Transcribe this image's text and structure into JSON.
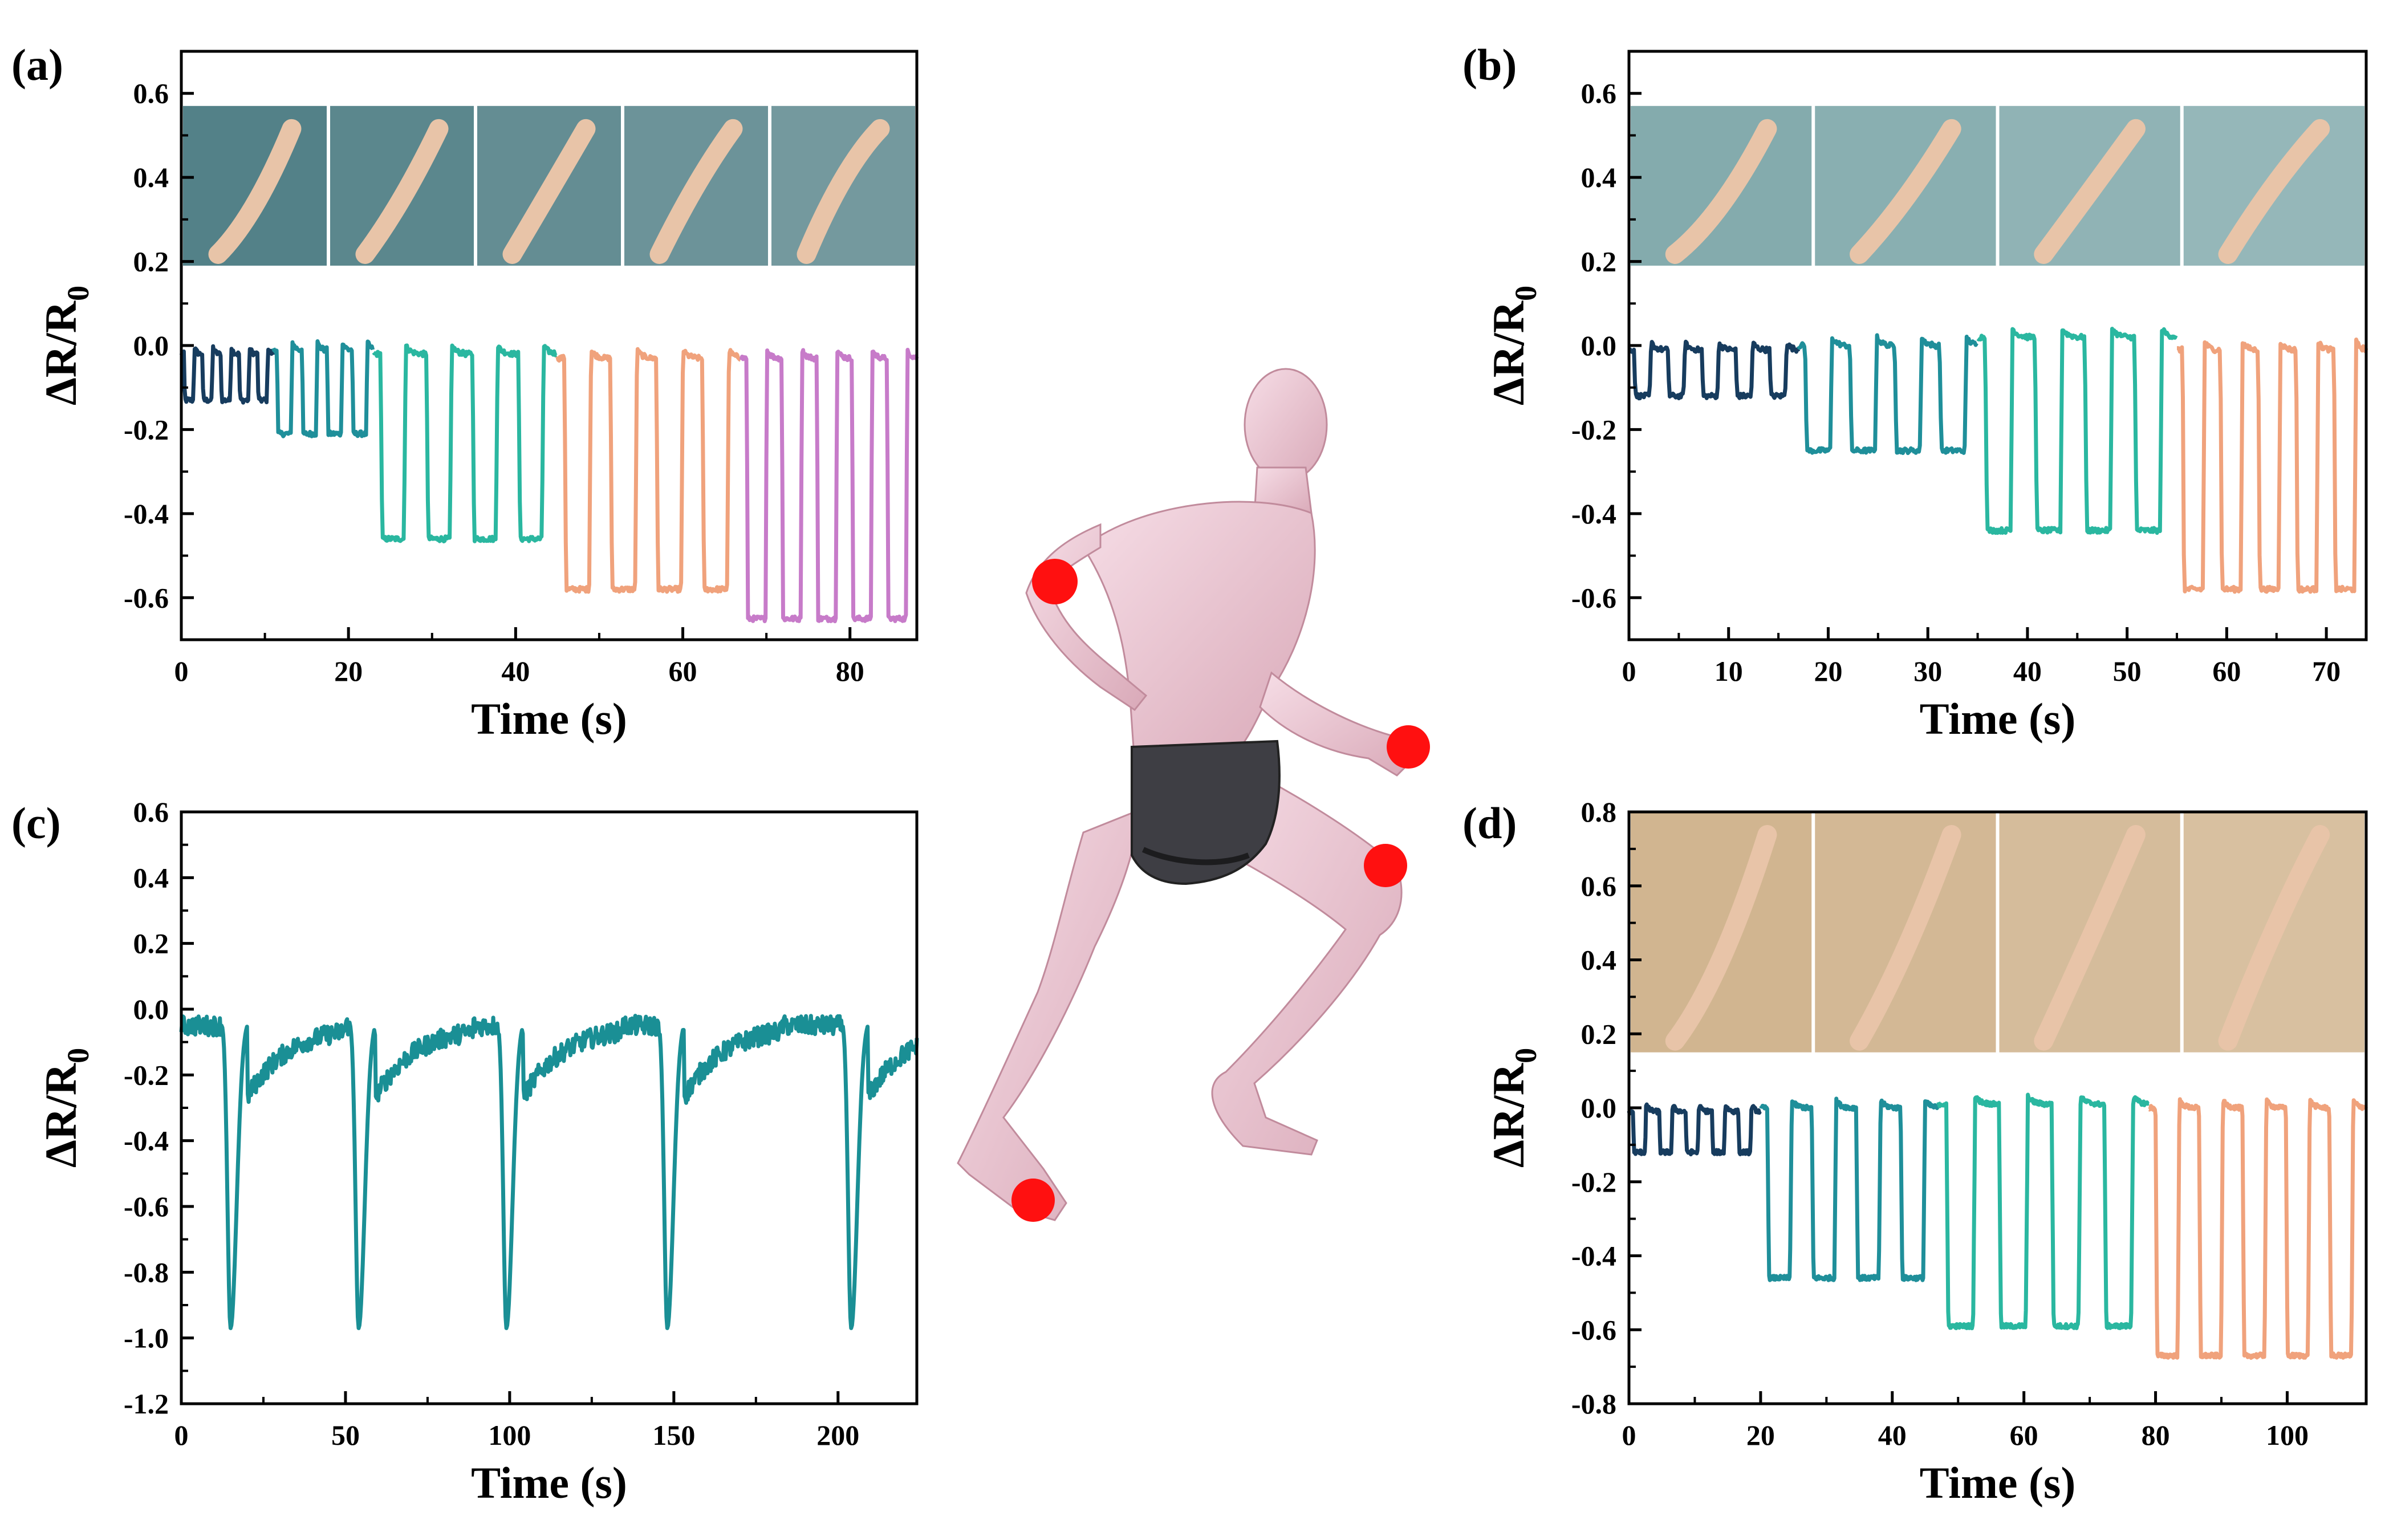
{
  "figure": {
    "center_illustration": {
      "description_icon": "running-man-icon",
      "marker_color": "#ff1010",
      "marker_names": [
        "elbow-marker",
        "wrist-marker",
        "knee-marker",
        "ankle-marker"
      ]
    }
  },
  "chart_data": [
    {
      "id": "a",
      "type": "line",
      "label": "(a)",
      "xlabel": "Time (s)",
      "ylabel_main": "ΔR/R",
      "ylabel_sub": "0",
      "xlim": [
        0,
        88
      ],
      "ylim": [
        -0.7,
        0.7
      ],
      "xticks": [
        0,
        20,
        40,
        60,
        80
      ],
      "yticks": [
        0.6,
        0.4,
        0.2,
        0.0,
        -0.2,
        -0.4,
        -0.6
      ],
      "ytick_labels": [
        "0.6",
        "0.4",
        "0.2",
        "0.0",
        "-0.2",
        "-0.4",
        "-0.6"
      ],
      "photo_icon": "arm-bending-photo-strip-icon",
      "photo_count": 5,
      "photo_yrange": [
        0.19,
        0.57
      ],
      "photo_color": "#356b73",
      "series": [
        {
          "name": "stage-1",
          "color": "#173c5e",
          "start": 0,
          "end": 11,
          "count": 5,
          "depth": -0.13,
          "duty": 0.55,
          "baseline": -0.02
        },
        {
          "name": "stage-2",
          "color": "#1f8f9a",
          "start": 11,
          "end": 23,
          "count": 4,
          "depth": -0.21,
          "duty": 0.6,
          "baseline": -0.01
        },
        {
          "name": "stage-3",
          "color": "#2ab7a0",
          "start": 23,
          "end": 45,
          "count": 4,
          "depth": -0.46,
          "duty": 0.55,
          "baseline": -0.02
        },
        {
          "name": "stage-4",
          "color": "#f0a27c",
          "start": 45,
          "end": 67,
          "count": 4,
          "depth": -0.58,
          "duty": 0.58,
          "baseline": -0.03
        },
        {
          "name": "stage-5",
          "color": "#c77bc9",
          "start": 67,
          "end": 88,
          "count": 5,
          "depth": -0.65,
          "duty": 0.58,
          "baseline": -0.03
        }
      ]
    },
    {
      "id": "b",
      "type": "line",
      "label": "(b)",
      "xlabel": "Time (s)",
      "ylabel_main": "ΔR/R",
      "ylabel_sub": "0",
      "xlim": [
        0,
        74
      ],
      "ylim": [
        -0.7,
        0.7
      ],
      "xticks": [
        0,
        10,
        20,
        30,
        40,
        50,
        60,
        70
      ],
      "yticks": [
        0.6,
        0.4,
        0.2,
        0.0,
        -0.2,
        -0.4,
        -0.6
      ],
      "ytick_labels": [
        "0.6",
        "0.4",
        "0.2",
        "0.0",
        "-0.2",
        "-0.4",
        "-0.6"
      ],
      "photo_icon": "finger-bending-photo-strip-icon",
      "photo_count": 4,
      "photo_yrange": [
        0.19,
        0.57
      ],
      "photo_color": "#6e9c9f",
      "series": [
        {
          "name": "stage-1",
          "color": "#173c5e",
          "start": 0,
          "end": 17,
          "count": 5,
          "depth": -0.12,
          "duty": 0.5,
          "baseline": -0.01
        },
        {
          "name": "stage-2",
          "color": "#1f8f9a",
          "start": 17,
          "end": 35,
          "count": 4,
          "depth": -0.25,
          "duty": 0.6,
          "baseline": 0.0
        },
        {
          "name": "stage-3",
          "color": "#2ab7a0",
          "start": 35,
          "end": 55,
          "count": 4,
          "depth": -0.44,
          "duty": 0.55,
          "baseline": 0.02
        },
        {
          "name": "stage-4",
          "color": "#f0a27c",
          "start": 55,
          "end": 74,
          "count": 5,
          "depth": -0.58,
          "duty": 0.58,
          "baseline": -0.01
        }
      ]
    },
    {
      "id": "c",
      "type": "line",
      "label": "(c)",
      "xlabel": "Time (s)",
      "ylabel_main": "ΔR/R",
      "ylabel_sub": "0",
      "xlim": [
        0,
        224
      ],
      "ylim": [
        -1.2,
        0.6
      ],
      "xticks": [
        0,
        50,
        100,
        150,
        200
      ],
      "yticks": [
        0.6,
        0.4,
        0.2,
        0.0,
        -0.2,
        -0.4,
        -0.6,
        -0.8,
        -1.0,
        -1.2
      ],
      "ytick_labels": [
        "0.6",
        "0.4",
        "0.2",
        "0.0",
        "-0.2",
        "-0.4",
        "-0.6",
        "-0.8",
        "-1.0",
        "-1.2"
      ],
      "series": [
        {
          "name": "ankle-signal",
          "color": "#1a8f95",
          "dips": [
            15,
            54,
            99,
            148,
            204
          ],
          "depth": -0.97
        }
      ]
    },
    {
      "id": "d",
      "type": "line",
      "label": "(d)",
      "xlabel": "Time (s)",
      "ylabel_main": "ΔR/R",
      "ylabel_sub": "0",
      "xlim": [
        0,
        112
      ],
      "ylim": [
        -0.8,
        0.8
      ],
      "xticks": [
        0,
        20,
        40,
        60,
        80,
        100
      ],
      "yticks": [
        0.8,
        0.6,
        0.4,
        0.2,
        0.0,
        -0.2,
        -0.4,
        -0.6,
        -0.8
      ],
      "ytick_labels": [
        "0.8",
        "0.6",
        "0.4",
        "0.2",
        "0.0",
        "-0.2",
        "-0.4",
        "-0.6",
        "-0.8"
      ],
      "photo_icon": "knee-bending-photo-strip-icon",
      "photo_count": 4,
      "photo_yrange": [
        0.15,
        0.8
      ],
      "photo_color": "#c9a87d",
      "series": [
        {
          "name": "stage-1",
          "color": "#173c5e",
          "start": 0,
          "end": 20,
          "count": 5,
          "depth": -0.12,
          "duty": 0.5,
          "baseline": -0.01
        },
        {
          "name": "stage-2",
          "color": "#1f8f9a",
          "start": 20,
          "end": 47,
          "count": 4,
          "depth": -0.46,
          "duty": 0.55,
          "baseline": 0.0
        },
        {
          "name": "stage-3",
          "color": "#2ab7a0",
          "start": 47,
          "end": 79,
          "count": 4,
          "depth": -0.59,
          "duty": 0.55,
          "baseline": 0.01
        },
        {
          "name": "stage-4",
          "color": "#f0a27c",
          "start": 79,
          "end": 112,
          "count": 5,
          "depth": -0.67,
          "duty": 0.55,
          "baseline": 0.0
        }
      ]
    }
  ]
}
